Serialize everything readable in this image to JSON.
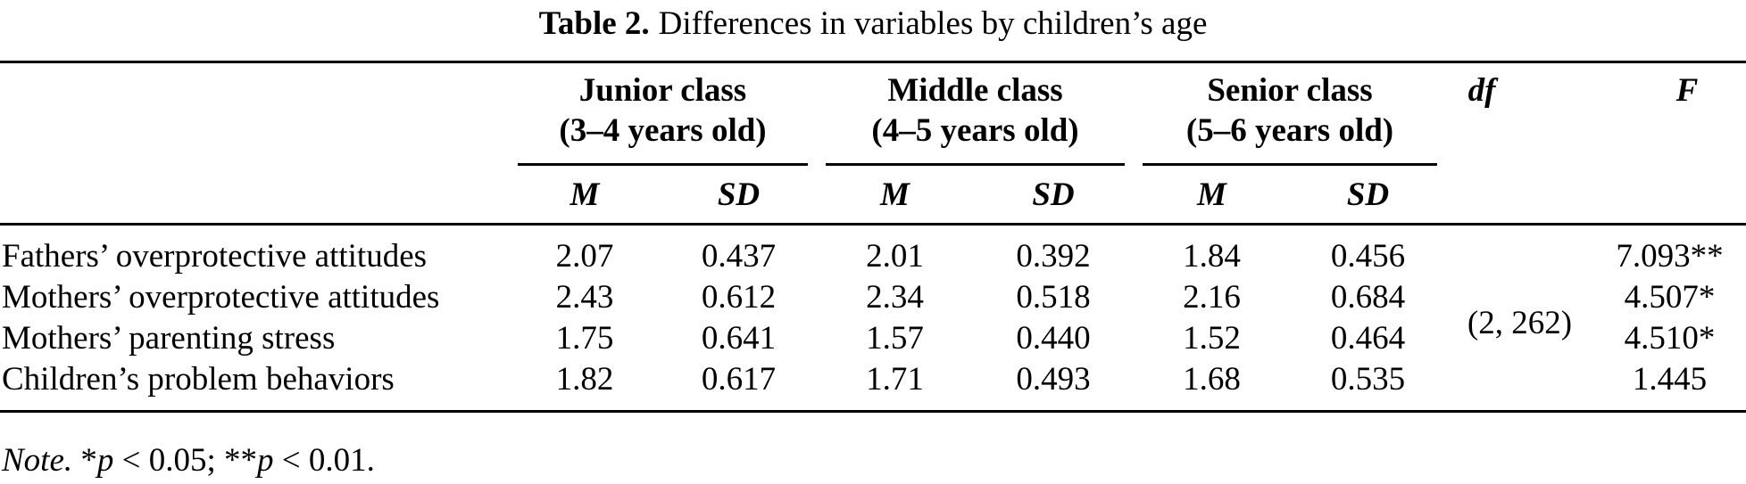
{
  "title": {
    "label": "Table 2.",
    "text": "Differences in variables by children’s age"
  },
  "table": {
    "groups": [
      {
        "name": "Junior class",
        "age": "(3–4 years old)"
      },
      {
        "name": "Middle class",
        "age": "(4–5 years old)"
      },
      {
        "name": "Senior class",
        "age": "(5–6 years old)"
      }
    ],
    "stat_headers": [
      "M",
      "SD",
      "M",
      "SD",
      "M",
      "SD"
    ],
    "df_header": "df",
    "f_header": "F",
    "df_value": "(2, 262)",
    "rows": [
      {
        "label": "Fathers’ overprotective attitudes",
        "values": [
          "2.07",
          "0.437",
          "2.01",
          "0.392",
          "1.84",
          "0.456"
        ],
        "f": "7.093**"
      },
      {
        "label": "Mothers’ overprotective attitudes",
        "values": [
          "2.43",
          "0.612",
          "2.34",
          "0.518",
          "2.16",
          "0.684"
        ],
        "f": "4.507*"
      },
      {
        "label": "Mothers’ parenting stress",
        "values": [
          "1.75",
          "0.641",
          "1.57",
          "0.440",
          "1.52",
          "0.464"
        ],
        "f": "4.510*"
      },
      {
        "label": "Children’s problem behaviors",
        "values": [
          "1.82",
          "0.617",
          "1.71",
          "0.493",
          "1.68",
          "0.535"
        ],
        "f": "1.445"
      }
    ]
  },
  "note": {
    "segments": [
      {
        "text": "Note. ",
        "italic": true
      },
      {
        "text": "*",
        "italic": false
      },
      {
        "text": "p",
        "italic": true
      },
      {
        "text": " < 0.05; **",
        "italic": false
      },
      {
        "text": "p",
        "italic": true
      },
      {
        "text": " < 0.01.",
        "italic": false
      }
    ]
  }
}
